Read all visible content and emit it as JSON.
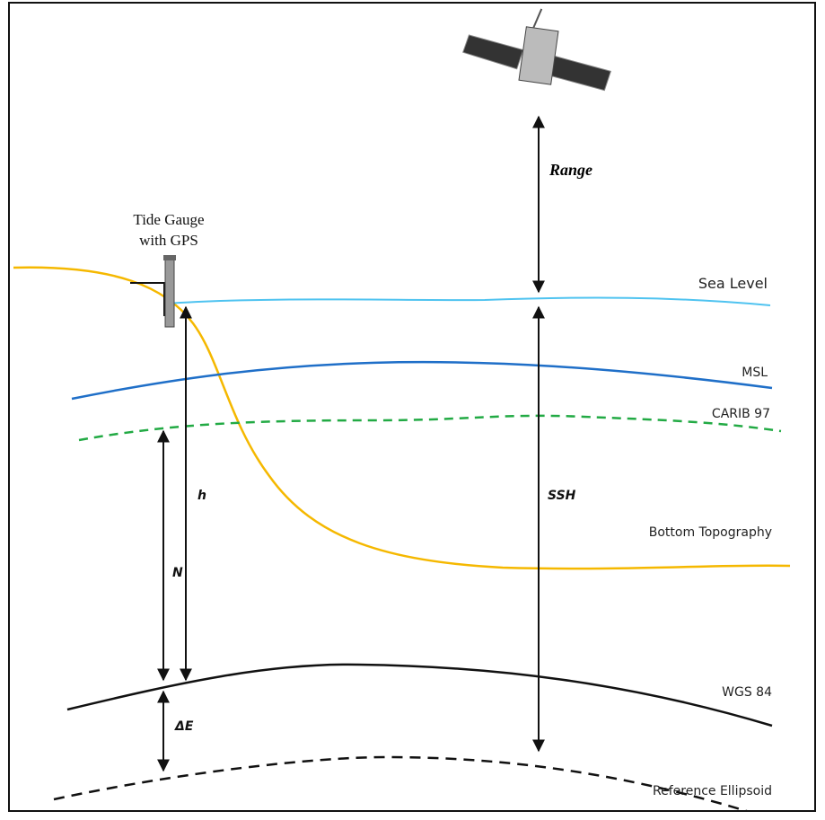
{
  "labels": {
    "tide_gauge": [
      "Tide Gauge",
      "with GPS"
    ],
    "range": "Range",
    "sea_level": "Sea Level",
    "msl": "MSL",
    "carib": "CARIB 97",
    "h": "h",
    "ssh": "SSH",
    "bottom": "Bottom Topography",
    "n": "N",
    "wgs": "WGS 84",
    "delta_e": "ΔE",
    "ellipsoid": "Reference Ellipsoid"
  }
}
